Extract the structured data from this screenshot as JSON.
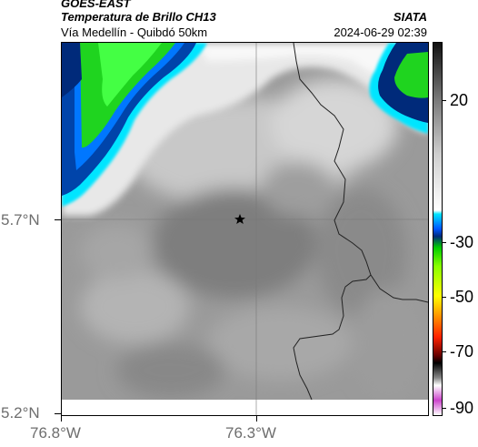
{
  "header": {
    "source": "GOES-EAST",
    "product": "Temperatura de Brillo CH13",
    "brand": "SIATA",
    "route": "Vía Medellín - Quibdó 50km",
    "datetime": "2024-06-29 02:39"
  },
  "map": {
    "lat_labels": [
      "5.7°N",
      "5.2°N"
    ],
    "lon_labels": [
      "76.8°W",
      "76.3°W"
    ],
    "marker_icon": "star-icon",
    "colors": {
      "cloud_gray": "#8f8f8f",
      "clear_white": "#f2f2f2",
      "cyan": "#00e5ff",
      "dark_blue": "#002a7a",
      "green": "#22dd22",
      "border_line": "#222222"
    }
  },
  "colorbar": {
    "labels": [
      "20",
      "-30",
      "-50",
      "-70",
      "-90"
    ],
    "scale_colors": [
      "#000000",
      "#ffffff",
      "#00e5ff",
      "#0055ff",
      "#00cc00",
      "#ffff00",
      "#ff3300",
      "#000000",
      "#cc44cc"
    ]
  }
}
